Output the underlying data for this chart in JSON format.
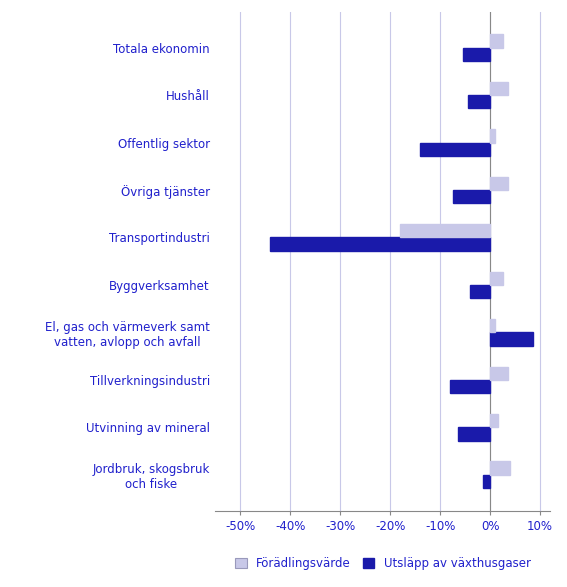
{
  "categories": [
    "Totala ekonomin",
    "Hushåll",
    "Offentlig sektor",
    "Övriga tjänster",
    "Transportindustri",
    "Byggverksamhet",
    "El, gas och värmeverk samt\nvatten, avlopp och avfall",
    "Tillverkningsindustri",
    "Utvinning av mineral",
    "Jordbruk, skogsbruk\noch fiske"
  ],
  "foradlingsvarde": [
    2.5,
    3.5,
    1.0,
    3.5,
    -18.0,
    2.5,
    1.0,
    3.5,
    1.5,
    4.0
  ],
  "utslapp": [
    -5.5,
    -4.5,
    -14.0,
    -7.5,
    -44.0,
    -4.0,
    8.5,
    -8.0,
    -6.5,
    -1.5
  ],
  "bar_color_foradling": "#c8c8e8",
  "bar_color_utslapp": "#1a1aaa",
  "xlim": [
    -55,
    12
  ],
  "xticks": [
    -50,
    -40,
    -30,
    -20,
    -10,
    0,
    10
  ],
  "xtick_labels": [
    "-50%",
    "-40%",
    "-30%",
    "-20%",
    "-10%",
    "0%",
    "10%"
  ],
  "legend_foradling": "Förädlingsvärde",
  "legend_utslapp": "Utsläpp av växthusgaser",
  "text_color": "#2020cc",
  "grid_color": "#c8c8e8",
  "bar_height": 0.28,
  "figsize": [
    5.67,
    5.87
  ],
  "dpi": 100
}
